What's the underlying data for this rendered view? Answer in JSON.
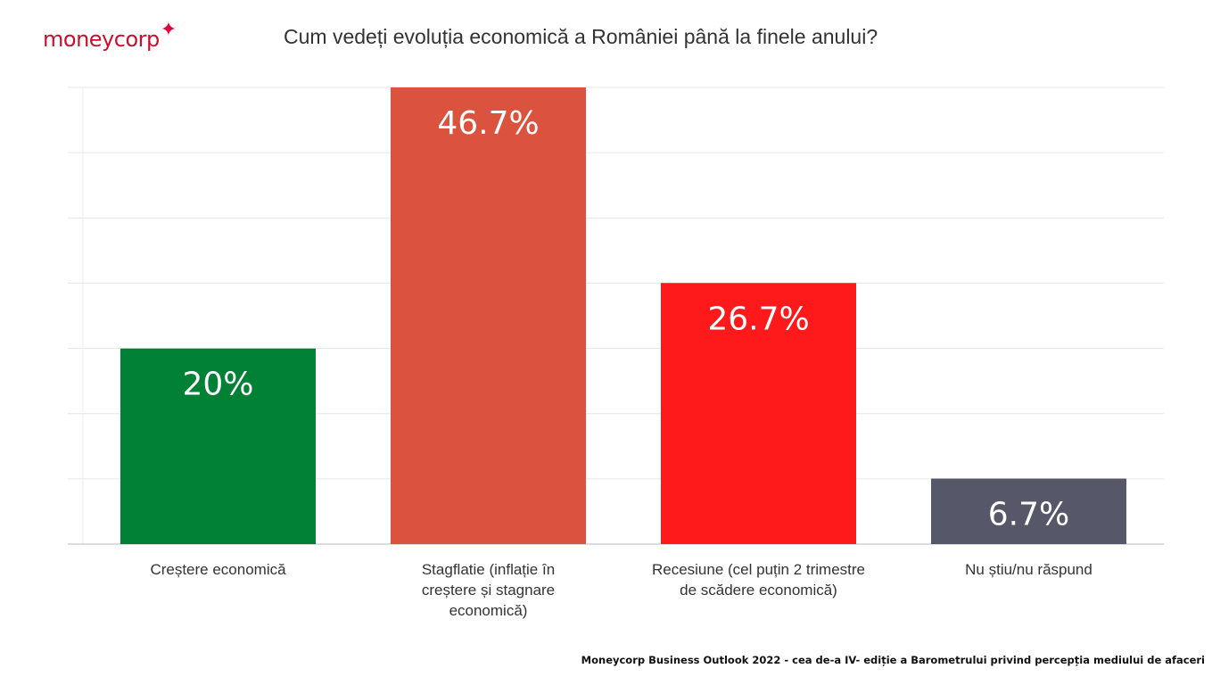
{
  "brand": {
    "logo_text": "moneycorp",
    "logo_icon": "sparkle-star-icon",
    "color": "#c8102e"
  },
  "footer": {
    "source": "Moneycorp Business Outlook 2022 - cea de-a IV- ediție a Barometrului privind percepția mediului de afaceri"
  },
  "chart_data": {
    "type": "bar",
    "title": "Cum vedeți evoluția economică a României până la finele anului?",
    "xlabel": "",
    "ylabel": "",
    "ylim": [
      0,
      46.7
    ],
    "grid": true,
    "legend": "none",
    "categories": [
      [
        "Creștere economică"
      ],
      [
        "Stagflatie (inflație în",
        "creștere și stagnare",
        "economică)"
      ],
      [
        "Recesiune (cel puțin 2 trimestre",
        "de scădere economică)"
      ],
      [
        "Nu știu/nu răspund"
      ]
    ],
    "values": [
      20,
      46.7,
      26.7,
      6.7
    ],
    "data_labels": [
      "20%",
      "46.7%",
      "26.7%",
      "6.7%"
    ],
    "colors": [
      "#008136",
      "#db523f",
      "#fe1a1a",
      "#565769"
    ]
  }
}
